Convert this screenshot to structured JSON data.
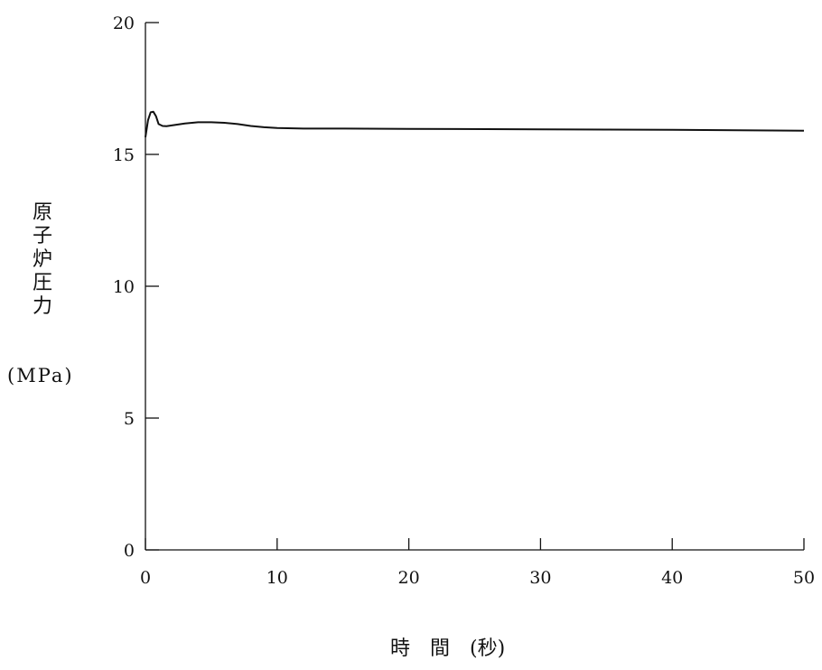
{
  "chart_data": {
    "type": "line",
    "ylabel": [
      "原",
      "子",
      "炉",
      "圧",
      "力"
    ],
    "ylabel_unit": "(MPa)",
    "xlabel": "時　間　(秒)",
    "xlim": [
      0,
      50
    ],
    "ylim": [
      0,
      20
    ],
    "x_ticks": [
      0,
      10,
      20,
      30,
      40,
      50
    ],
    "y_ticks": [
      0,
      5,
      10,
      15,
      20
    ],
    "grid": false,
    "series": [
      {
        "x": [
          0,
          0.2,
          0.4,
          0.6,
          0.8,
          1.0,
          1.3,
          1.6,
          2,
          3,
          4,
          5,
          6,
          7,
          8,
          9,
          10,
          12,
          15,
          20,
          30,
          40,
          50
        ],
        "y": [
          15.65,
          16.3,
          16.6,
          16.62,
          16.45,
          16.15,
          16.08,
          16.07,
          16.1,
          16.17,
          16.22,
          16.22,
          16.2,
          16.15,
          16.08,
          16.03,
          16.0,
          15.98,
          15.98,
          15.97,
          15.95,
          15.93,
          15.9
        ]
      }
    ]
  }
}
